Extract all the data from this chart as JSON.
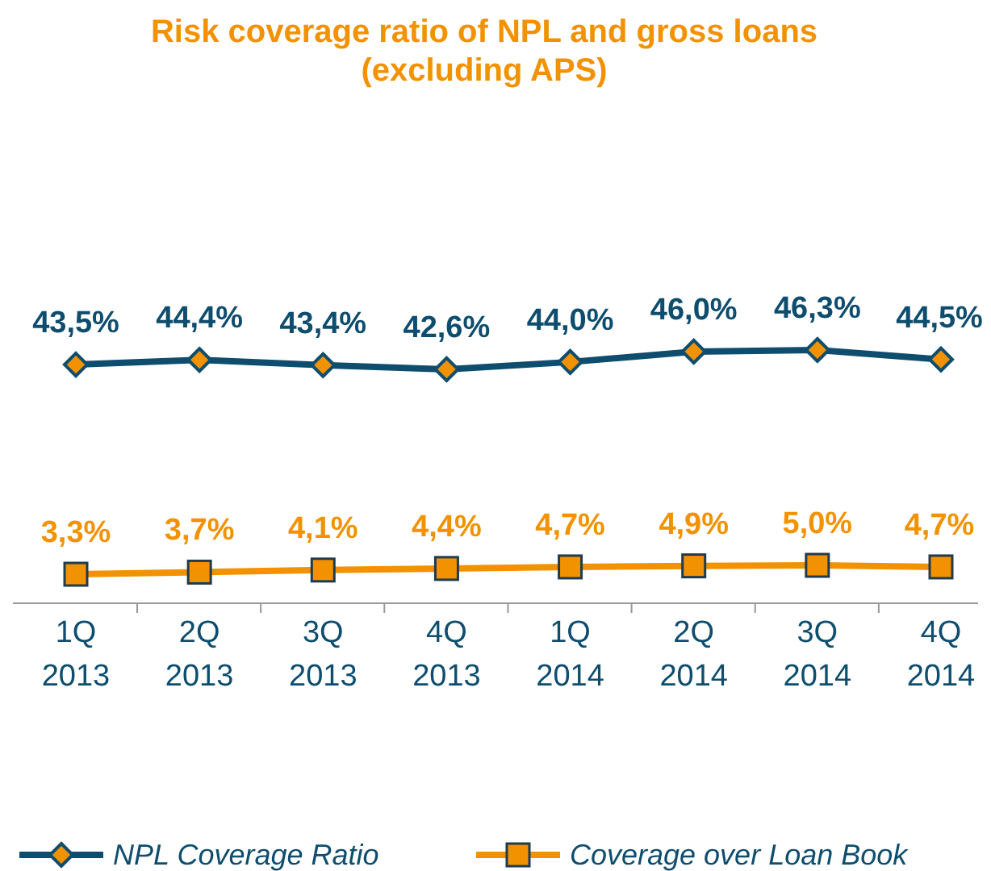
{
  "chart_data": {
    "type": "line",
    "title": "Risk coverage ratio of NPL and gross loans\n(excluding APS)",
    "categories": [
      "1Q\n2013",
      "2Q\n2013",
      "3Q\n2013",
      "4Q\n2013",
      "1Q\n2014",
      "2Q\n2014",
      "3Q\n2014",
      "4Q\n2014"
    ],
    "series": [
      {
        "name": "NPL Coverage Ratio",
        "color": "#0e4d6e",
        "marker": "diamond",
        "values": [
          43.5,
          44.4,
          43.4,
          42.6,
          44.0,
          46.0,
          46.3,
          44.5
        ],
        "value_labels": [
          "43,5%",
          "44,4%",
          "43,4%",
          "42,6%",
          "44,0%",
          "46,0%",
          "46,3%",
          "44,5%"
        ]
      },
      {
        "name": "Coverage over Loan Book",
        "color": "#f39200",
        "marker": "square",
        "values": [
          3.3,
          3.7,
          4.1,
          4.4,
          4.7,
          4.9,
          5.0,
          4.7
        ],
        "value_labels": [
          "3,3%",
          "3,7%",
          "4,1%",
          "4,4%",
          "4,7%",
          "4,9%",
          "5,0%",
          "4,7%"
        ]
      }
    ],
    "tick_labels": "x",
    "legend": "bottom"
  }
}
